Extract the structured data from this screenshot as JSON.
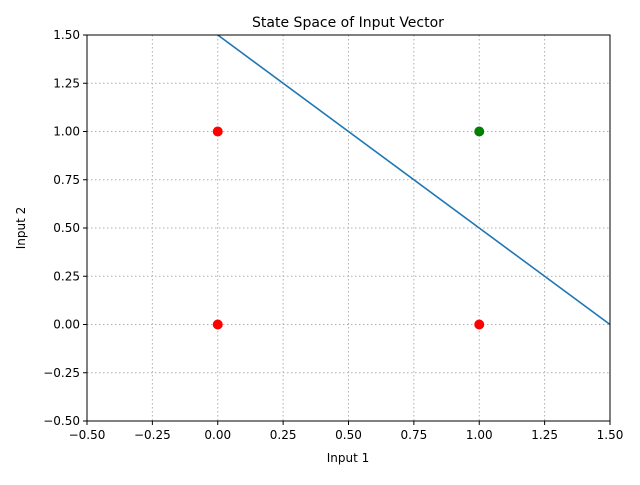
{
  "chart_data": {
    "type": "scatter",
    "title": "State Space of Input Vector",
    "xlabel": "Input 1",
    "ylabel": "Input 2",
    "xlim": [
      -0.5,
      1.5
    ],
    "ylim": [
      -0.5,
      1.5
    ],
    "x_ticks": [
      -0.5,
      -0.25,
      0.0,
      0.25,
      0.5,
      0.75,
      1.0,
      1.25,
      1.5
    ],
    "y_ticks": [
      -0.5,
      -0.25,
      0.0,
      0.25,
      0.5,
      0.75,
      1.0,
      1.25,
      1.5
    ],
    "x_tick_labels": [
      "−0.50",
      "−0.25",
      "0.00",
      "0.25",
      "0.50",
      "0.75",
      "1.00",
      "1.25",
      "1.50"
    ],
    "y_tick_labels": [
      "−0.50",
      "−0.25",
      "0.00",
      "0.25",
      "0.50",
      "0.75",
      "1.00",
      "1.25",
      "1.50"
    ],
    "grid": true,
    "grid_style": "dotted",
    "points": [
      {
        "x": 0,
        "y": 0,
        "color": "#ff0000"
      },
      {
        "x": 0,
        "y": 1,
        "color": "#ff0000"
      },
      {
        "x": 1,
        "y": 0,
        "color": "#ff0000"
      },
      {
        "x": 1,
        "y": 1,
        "color": "#008000"
      }
    ],
    "decision_line": {
      "x": [
        0,
        1.5
      ],
      "y": [
        1.5,
        0
      ],
      "color": "#1f77b4"
    }
  }
}
